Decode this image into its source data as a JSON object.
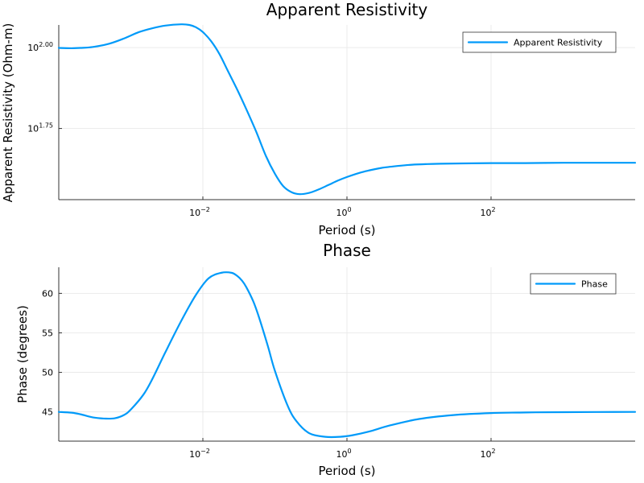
{
  "chart_data": [
    {
      "type": "line",
      "title": "Apparent Resistivity",
      "xlabel": "Period (s)",
      "ylabel": "Apparent Resistivity (Ohm-m)",
      "x_scale": "log",
      "y_scale": "log",
      "xlim": [
        0.0001,
        10000
      ],
      "ylim_log10": [
        1.53,
        2.07
      ],
      "x_ticks": [
        {
          "value": 0.01,
          "label": "10",
          "exp": "−2"
        },
        {
          "value": 1,
          "label": "10",
          "exp": "0"
        },
        {
          "value": 100,
          "label": "10",
          "exp": "2"
        }
      ],
      "y_ticks": [
        {
          "value_log10": 1.75,
          "label": "10",
          "exp": "1.75"
        },
        {
          "value_log10": 2.0,
          "label": "10",
          "exp": "2.00"
        }
      ],
      "grid": true,
      "legend": "top-right",
      "series": [
        {
          "name": "Apparent Resistivity",
          "color": "#009af9",
          "x": [
            0.0001,
            0.00015,
            0.0002,
            0.0003,
            0.0005,
            0.0008,
            0.0013,
            0.002,
            0.003,
            0.005,
            0.0065,
            0.008,
            0.01,
            0.013,
            0.017,
            0.022,
            0.03,
            0.04,
            0.055,
            0.075,
            0.1,
            0.13,
            0.17,
            0.22,
            0.3,
            0.4,
            0.55,
            0.75,
            1,
            1.5,
            2,
            3,
            5,
            8,
            13,
            20,
            40,
            100,
            300,
            1000,
            3000,
            10000
          ],
          "y_log10": [
            1.999,
            1.998,
            1.999,
            2.002,
            2.012,
            2.028,
            2.048,
            2.06,
            2.068,
            2.072,
            2.07,
            2.063,
            2.048,
            2.02,
            1.98,
            1.93,
            1.87,
            1.81,
            1.74,
            1.665,
            1.61,
            1.572,
            1.553,
            1.547,
            1.551,
            1.561,
            1.575,
            1.589,
            1.6,
            1.613,
            1.62,
            1.628,
            1.634,
            1.638,
            1.64,
            1.641,
            1.642,
            1.643,
            1.643,
            1.644,
            1.644,
            1.644
          ]
        }
      ]
    },
    {
      "type": "line",
      "title": "Phase",
      "xlabel": "Period (s)",
      "ylabel": "Phase (degrees)",
      "x_scale": "log",
      "xlim": [
        0.0001,
        10000
      ],
      "ylim": [
        41.3,
        63.3
      ],
      "x_ticks": [
        {
          "value": 0.01,
          "label": "10",
          "exp": "−2"
        },
        {
          "value": 1,
          "label": "10",
          "exp": "0"
        },
        {
          "value": 100,
          "label": "10",
          "exp": "2"
        }
      ],
      "y_ticks": [
        45,
        50,
        55,
        60
      ],
      "grid": true,
      "legend": "top-right",
      "series": [
        {
          "name": "Phase",
          "color": "#009af9",
          "x": [
            0.0001,
            0.00015,
            0.0002,
            0.0003,
            0.00045,
            0.0006,
            0.0008,
            0.001,
            0.0015,
            0.002,
            0.003,
            0.005,
            0.008,
            0.012,
            0.018,
            0.025,
            0.03,
            0.035,
            0.04,
            0.05,
            0.06,
            0.08,
            0.1,
            0.15,
            0.2,
            0.3,
            0.5,
            0.8,
            1.2,
            2,
            4,
            10,
            30,
            100,
            300,
            1000,
            10000
          ],
          "y": [
            45.0,
            44.9,
            44.7,
            44.3,
            44.15,
            44.2,
            44.6,
            45.3,
            47.2,
            49.2,
            52.5,
            56.5,
            59.8,
            61.9,
            62.6,
            62.6,
            62.2,
            61.6,
            60.8,
            59.0,
            57.0,
            53.3,
            50.2,
            45.8,
            43.8,
            42.3,
            41.85,
            41.85,
            42.05,
            42.5,
            43.3,
            44.1,
            44.6,
            44.85,
            44.93,
            44.97,
            45.0
          ]
        }
      ]
    }
  ]
}
